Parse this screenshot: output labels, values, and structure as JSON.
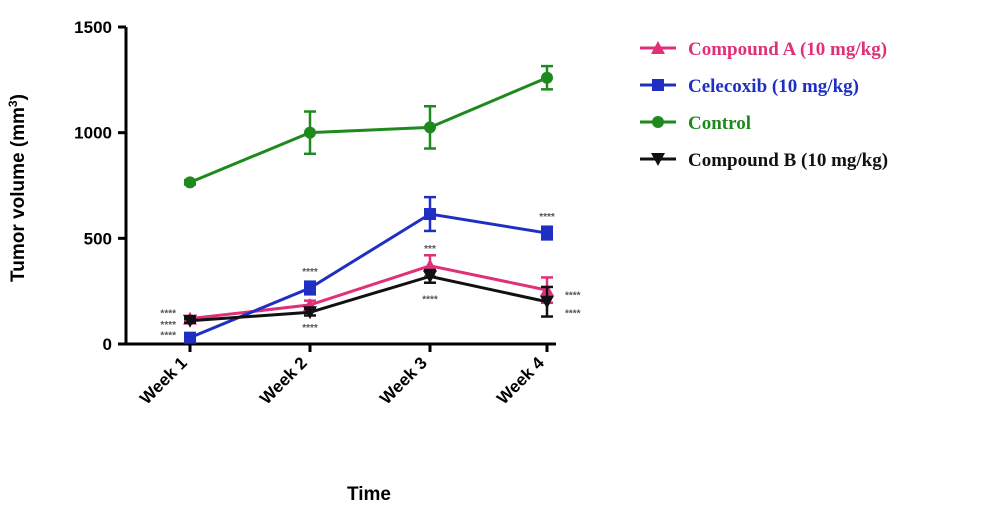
{
  "chart_data": {
    "type": "line",
    "title": "",
    "xlabel": "Time",
    "ylabel": "Tumor volume (mm",
    "ylabel_superscript": "3",
    "ylabel_suffix": ")",
    "categories": [
      "Week 1",
      "Week 2",
      "Week 3",
      "Week 4"
    ],
    "ylim": [
      0,
      1500
    ],
    "yticks": [
      "0",
      "500",
      "1000",
      "1500"
    ],
    "grid": false,
    "legend_placement": "top-right",
    "series": [
      {
        "name": "Compound A (10 mg/kg)",
        "color": "#e0307a",
        "marker": "triangle-up",
        "values": [
          120,
          185,
          370,
          255
        ],
        "errors": [
          10,
          20,
          50,
          60
        ]
      },
      {
        "name": "Celecoxib (10 mg/kg)",
        "color": "#1f2fc4",
        "marker": "square",
        "values": [
          30,
          265,
          615,
          525
        ],
        "errors": [
          10,
          30,
          80,
          30
        ]
      },
      {
        "name": "Control",
        "color": "#1e8a1e",
        "marker": "circle",
        "values": [
          765,
          1000,
          1025,
          1260
        ],
        "errors": [
          10,
          100,
          100,
          55
        ]
      },
      {
        "name": "Compound B (10 mg/kg)",
        "color": "#111111",
        "marker": "triangle-down",
        "values": [
          110,
          150,
          320,
          200
        ],
        "errors": [
          10,
          15,
          30,
          70
        ]
      }
    ],
    "annotations": [
      {
        "text": "****",
        "x": 0,
        "y": 150,
        "side": "left",
        "color": "#555555"
      },
      {
        "text": "****",
        "x": 0,
        "y": 95,
        "side": "left",
        "color": "#555555"
      },
      {
        "text": "****",
        "x": 0,
        "y": 45,
        "side": "left",
        "color": "#555555"
      },
      {
        "text": "****",
        "x": 1,
        "y": 345,
        "side": "center",
        "color": "#555555"
      },
      {
        "text": "****",
        "x": 1,
        "y": 80,
        "side": "center",
        "color": "#555555"
      },
      {
        "text": "***",
        "x": 2,
        "y": 455,
        "side": "center",
        "color": "#555555"
      },
      {
        "text": "****",
        "x": 2,
        "y": 215,
        "side": "center",
        "color": "#555555"
      },
      {
        "text": "****",
        "x": 3,
        "y": 605,
        "side": "center",
        "color": "#555555"
      },
      {
        "text": "****",
        "x": 3,
        "y": 235,
        "side": "right",
        "color": "#555555"
      },
      {
        "text": "****",
        "x": 3,
        "y": 150,
        "side": "right",
        "color": "#555555"
      }
    ]
  }
}
